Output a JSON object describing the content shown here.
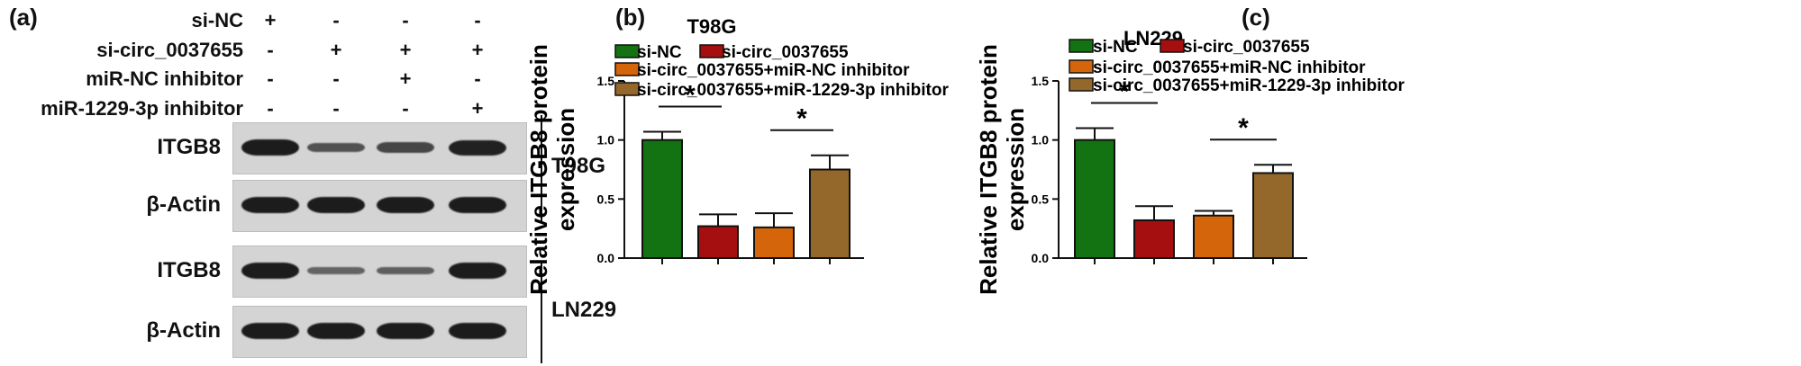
{
  "panels": {
    "a": "(a)",
    "b": "(b)",
    "c": "(c)"
  },
  "conditions": [
    {
      "label": "si-NC",
      "signs": [
        "+",
        "-",
        "-",
        "-"
      ]
    },
    {
      "label": "si-circ_0037655",
      "signs": [
        "-",
        "+",
        "+",
        "+"
      ]
    },
    {
      "label": "miR-NC inhibitor",
      "signs": [
        "-",
        "-",
        "+",
        "-"
      ]
    },
    {
      "label": "miR-1229-3p inhibitor",
      "signs": [
        "-",
        "-",
        "-",
        "+"
      ]
    }
  ],
  "blots": [
    {
      "protein": "ITGB8",
      "intensity": [
        1.0,
        0.55,
        0.65,
        0.95
      ]
    },
    {
      "protein": "β-Actin",
      "intensity": [
        1.0,
        1.0,
        1.0,
        1.0
      ]
    },
    {
      "protein": "ITGB8",
      "intensity": [
        1.0,
        0.4,
        0.45,
        1.0
      ]
    },
    {
      "protein": "β-Actin",
      "intensity": [
        1.0,
        1.0,
        1.0,
        1.0
      ]
    }
  ],
  "cell_lines": [
    "T98G",
    "LN229"
  ],
  "colors": [
    "#137313",
    "#a50f0f",
    "#d4650a",
    "#94672a"
  ],
  "chart_data": [
    {
      "type": "bar",
      "title": "T98G",
      "ylabel": "Relative ITGB8 protein expression",
      "ylim": [
        0,
        1.5
      ],
      "yticks": [
        "0.0",
        "0.5",
        "1.0",
        "1.5"
      ],
      "categories": [
        "si-NC",
        "si-circ_0037655",
        "si-circ_0037655+miR-NC inhibitor",
        "si-circ_0037655+miR-1229-3p inhibitor"
      ],
      "values": [
        1.0,
        0.27,
        0.26,
        0.75
      ],
      "errors": [
        0.07,
        0.1,
        0.12,
        0.12
      ],
      "legend_placement": "top",
      "significance": [
        {
          "pair": [
            0,
            1
          ],
          "label": "*"
        },
        {
          "pair": [
            2,
            3
          ],
          "label": "*"
        }
      ]
    },
    {
      "type": "bar",
      "title": "LN229",
      "ylabel": "Relative ITGB8 protein expression",
      "ylim": [
        0,
        1.5
      ],
      "yticks": [
        "0.0",
        "0.5",
        "1.0",
        "1.5"
      ],
      "categories": [
        "si-NC",
        "si-circ_0037655",
        "si-circ_0037655+miR-NC inhibitor",
        "si-circ_0037655+miR-1229-3p inhibitor"
      ],
      "values": [
        1.0,
        0.32,
        0.36,
        0.72
      ],
      "errors": [
        0.1,
        0.12,
        0.04,
        0.07
      ],
      "legend_placement": "top",
      "significance": [
        {
          "pair": [
            0,
            1
          ],
          "label": "*"
        },
        {
          "pair": [
            2,
            3
          ],
          "label": "*"
        }
      ]
    }
  ]
}
